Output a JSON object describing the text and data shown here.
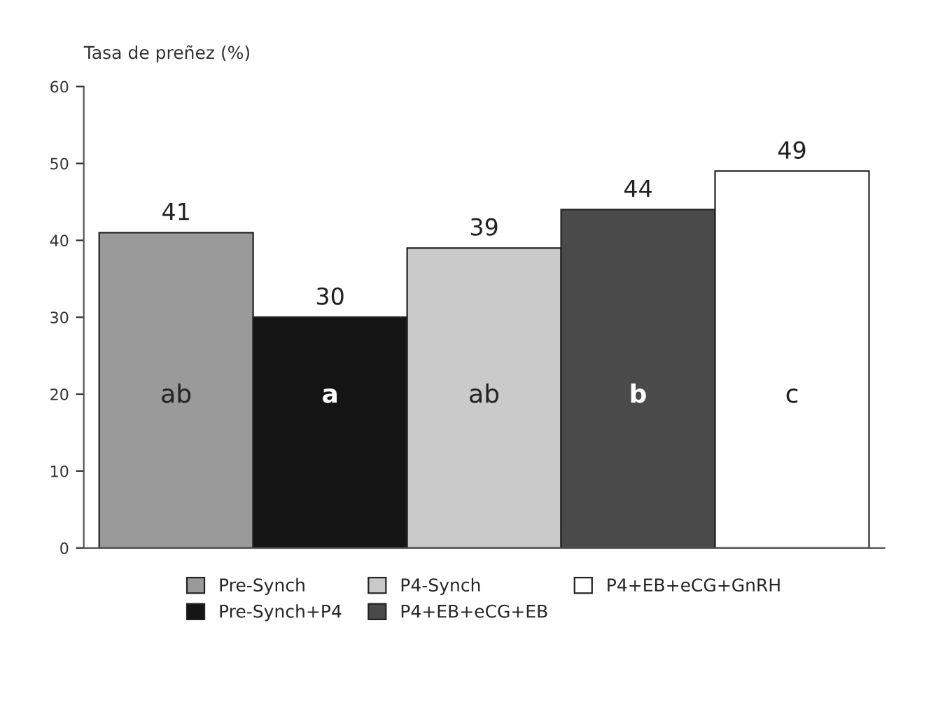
{
  "chart_data": {
    "type": "bar",
    "ylabel": "Tasa de preñez (%)",
    "categories": [
      null,
      null,
      null,
      null,
      null
    ],
    "series": [
      {
        "name": "Pre-Synch",
        "color": "#9a9a9a",
        "values": [
          41,
          null,
          null,
          null,
          null
        ]
      },
      {
        "name": "Pre-Synch+P4",
        "color": "#141414",
        "values": [
          null,
          30,
          null,
          null,
          null
        ]
      },
      {
        "name": "P4-Synch",
        "color": "#cacaca",
        "values": [
          null,
          null,
          39,
          null,
          null
        ]
      },
      {
        "name": "P4+EB+eCG+EB",
        "color": "#4a4a4a",
        "values": [
          null,
          null,
          null,
          44,
          null
        ]
      },
      {
        "name": "P4+EB+eCG+GnRH",
        "color": "#ffffff",
        "values": [
          null,
          null,
          null,
          null,
          49
        ]
      }
    ],
    "annotations": [
      "ab",
      "a",
      "ab",
      "b",
      "c"
    ],
    "ylim": [
      0,
      60
    ],
    "yticks": [
      0,
      10,
      20,
      30,
      40,
      50,
      60
    ],
    "data_labels": true,
    "legend": "bottom",
    "tick_labels": "y",
    "grid": false
  }
}
